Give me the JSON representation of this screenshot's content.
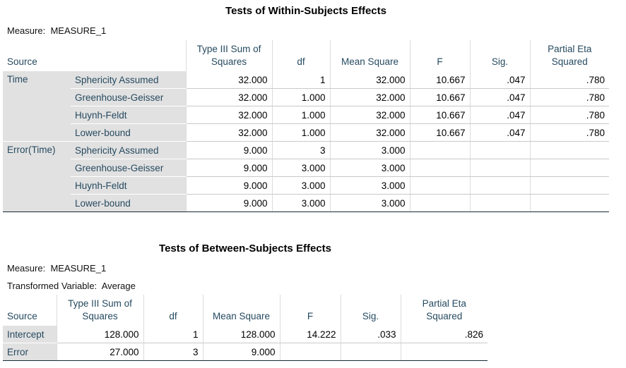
{
  "tables": [
    {
      "title": "Tests of Within-Subjects Effects",
      "notes": [
        {
          "label": "Measure:",
          "value": "MEASURE_1"
        }
      ],
      "columns": [
        "Source",
        "Type III Sum of Squares",
        "df",
        "Mean Square",
        "F",
        "Sig.",
        "Partial Eta Squared"
      ],
      "groups": [
        {
          "source": "Time",
          "rows": [
            {
              "label": "Sphericity Assumed",
              "cells": [
                "32.000",
                "1",
                "32.000",
                "10.667",
                ".047",
                ".780"
              ]
            },
            {
              "label": "Greenhouse-Geisser",
              "cells": [
                "32.000",
                "1.000",
                "32.000",
                "10.667",
                ".047",
                ".780"
              ]
            },
            {
              "label": "Huynh-Feldt",
              "cells": [
                "32.000",
                "1.000",
                "32.000",
                "10.667",
                ".047",
                ".780"
              ]
            },
            {
              "label": "Lower-bound",
              "cells": [
                "32.000",
                "1.000",
                "32.000",
                "10.667",
                ".047",
                ".780"
              ]
            }
          ]
        },
        {
          "source": "Error(Time)",
          "rows": [
            {
              "label": "Sphericity Assumed",
              "cells": [
                "9.000",
                "3",
                "3.000"
              ]
            },
            {
              "label": "Greenhouse-Geisser",
              "cells": [
                "9.000",
                "3.000",
                "3.000"
              ]
            },
            {
              "label": "Huynh-Feldt",
              "cells": [
                "9.000",
                "3.000",
                "3.000"
              ]
            },
            {
              "label": "Lower-bound",
              "cells": [
                "9.000",
                "3.000",
                "3.000"
              ]
            }
          ]
        }
      ]
    },
    {
      "title": "Tests of Between-Subjects Effects",
      "notes": [
        {
          "label": "Measure:",
          "value": "MEASURE_1"
        },
        {
          "label": "Transformed Variable:",
          "value": "Average"
        }
      ],
      "columns": [
        "Source",
        "Type III Sum of Squares",
        "df",
        "Mean Square",
        "F",
        "Sig.",
        "Partial Eta Squared"
      ],
      "rows": [
        {
          "label": "Intercept",
          "cells": [
            "128.000",
            "1",
            "128.000",
            "14.222",
            ".033",
            ".826"
          ]
        },
        {
          "label": "Error",
          "cells": [
            "27.000",
            "3",
            "9.000"
          ]
        }
      ]
    }
  ]
}
